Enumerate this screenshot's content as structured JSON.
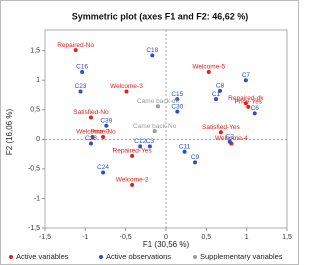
{
  "chart_data": {
    "type": "scatter",
    "title": "Symmetric plot (axes F1 and F2: 46,62 %)",
    "x_label": "F1 (30,56 %)",
    "y_label": "F2 (16,06 %)",
    "xlim": [
      -1.5,
      1.5
    ],
    "ylim": [
      -1.5,
      1.85
    ],
    "xticks": [
      {
        "value": -1.5,
        "label": "-1,5"
      },
      -1,
      {
        "value": -0.5,
        "label": "-0,5"
      },
      0,
      {
        "value": 0.5,
        "label": "0,5"
      },
      1,
      {
        "value": 1.5,
        "label": "1,5"
      }
    ],
    "yticks": [
      {
        "value": -1.5,
        "label": "-1,5"
      },
      -1,
      {
        "value": -0.5,
        "label": "-0,5"
      },
      0,
      {
        "value": 0.5,
        "label": "0,5"
      },
      1,
      {
        "value": 1.5,
        "label": "1,5"
      }
    ],
    "legend": "bottom",
    "series": [
      {
        "name": "Active variables",
        "color": "#e0201c",
        "labels": [
          "Repaired-No",
          "Welcome-3",
          "Satisfied-No",
          "Welcome-0",
          "Price-No",
          "Repaired-Yes",
          "Welcome-2",
          "Welcome-5",
          "Repaired-dk",
          "Price-Yes",
          "Satisfied-Yes",
          "Welcome-4"
        ],
        "x": [
          -1.12,
          -0.49,
          -0.93,
          -0.91,
          -0.78,
          -0.42,
          -0.42,
          0.53,
          0.99,
          1.02,
          0.68,
          0.81
        ],
        "y": [
          1.51,
          0.81,
          0.37,
          0.04,
          0.04,
          -0.28,
          -0.77,
          1.14,
          0.61,
          0.55,
          0.12,
          -0.07
        ]
      },
      {
        "name": "Active observations",
        "color": "#2a4fc8",
        "labels": [
          "C16",
          "C23",
          "C18",
          "C39",
          "C28",
          "C24",
          "C15",
          "C30",
          "C12",
          "C3",
          "C8",
          "C1",
          "C7",
          "C6",
          "C11",
          "C9",
          "C2"
        ],
        "x": [
          -1.04,
          -1.06,
          -0.17,
          -0.74,
          -0.93,
          -0.78,
          0.14,
          0.14,
          -0.32,
          -0.2,
          0.67,
          0.62,
          0.99,
          1.1,
          0.23,
          0.36,
          0.79
        ],
        "y": [
          1.14,
          0.81,
          1.42,
          0.23,
          -0.07,
          -0.56,
          0.68,
          0.47,
          -0.12,
          -0.12,
          0.82,
          0.68,
          1.0,
          0.44,
          -0.21,
          -0.39,
          -0.04
        ]
      },
      {
        "name": "Supplementary variables",
        "color": "#9a9a9a",
        "labels": [
          "Came back-dk",
          "Came back-No"
        ],
        "x": [
          -0.1,
          -0.14
        ],
        "y": [
          0.56,
          0.14
        ]
      }
    ]
  }
}
